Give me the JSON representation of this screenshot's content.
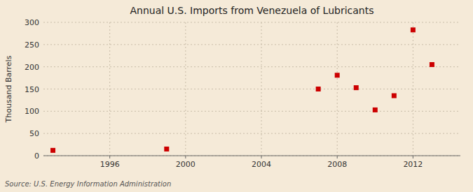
{
  "chart_data": {
    "type": "scatter",
    "title": "Annual U.S. Imports from Venezuela of Lubricants",
    "y_label": "Thousand Barrels",
    "annotation": "Source: U.S. Energy Information Administration",
    "x": [
      1993,
      1999,
      2007,
      2008,
      2009,
      2010,
      2011,
      2012,
      2013
    ],
    "values": [
      12,
      15,
      150,
      181,
      153,
      103,
      135,
      283,
      205
    ],
    "color": "#cc0000",
    "marker": "square",
    "xlim": [
      1992.5,
      2014.5
    ],
    "ylim": [
      0,
      300
    ],
    "xticks": [
      1996,
      2000,
      2004,
      2008,
      2012
    ],
    "yticks": [
      0,
      50,
      100,
      150,
      200,
      250,
      300
    ],
    "grid": true
  }
}
